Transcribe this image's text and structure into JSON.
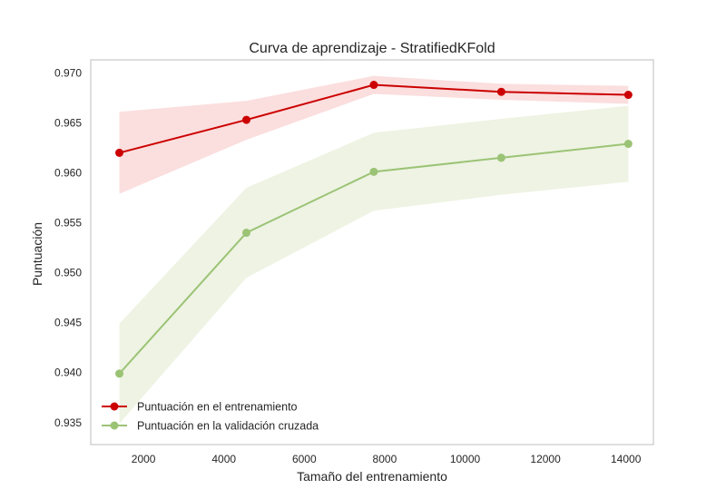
{
  "chart_data": {
    "type": "line",
    "title": "Curva de aprendizaje - StratifiedKFold",
    "xlabel": "Tamaño del entrenamiento",
    "ylabel": "Puntuación",
    "xlim": [
      688,
      14684
    ],
    "ylim": [
      0.9328,
      0.9713
    ],
    "xticks": [
      2000,
      4000,
      6000,
      8000,
      10000,
      12000,
      14000
    ],
    "yticks": [
      0.935,
      0.94,
      0.945,
      0.95,
      0.955,
      0.96,
      0.965,
      0.97
    ],
    "xtick_labels": [
      "2000",
      "4000",
      "6000",
      "8000",
      "10000",
      "12000",
      "14000"
    ],
    "ytick_labels": [
      "0.935",
      "0.940",
      "0.945",
      "0.950",
      "0.955",
      "0.960",
      "0.965",
      "0.970"
    ],
    "grid": false,
    "legend_position": "lower-left",
    "x": [
      1400,
      4560,
      7730,
      10900,
      14060
    ],
    "series": [
      {
        "name": "Puntuación en el entrenamiento",
        "color": "#cc0000",
        "band_color": "#f9d3d3",
        "values": [
          0.962,
          0.9653,
          0.9688,
          0.9681,
          0.9678
        ],
        "lower": [
          0.9579,
          0.9633,
          0.9679,
          0.9673,
          0.9669
        ],
        "upper": [
          0.9661,
          0.9672,
          0.9697,
          0.9689,
          0.9687
        ]
      },
      {
        "name": "Puntuación en la validación cruzada",
        "color": "#9bc375",
        "band_color": "#e8efd9",
        "values": [
          0.9399,
          0.954,
          0.9601,
          0.9615,
          0.9629
        ],
        "lower": [
          0.9349,
          0.9495,
          0.9562,
          0.9578,
          0.9591
        ],
        "upper": [
          0.9449,
          0.9585,
          0.964,
          0.9654,
          0.9667
        ]
      }
    ]
  }
}
